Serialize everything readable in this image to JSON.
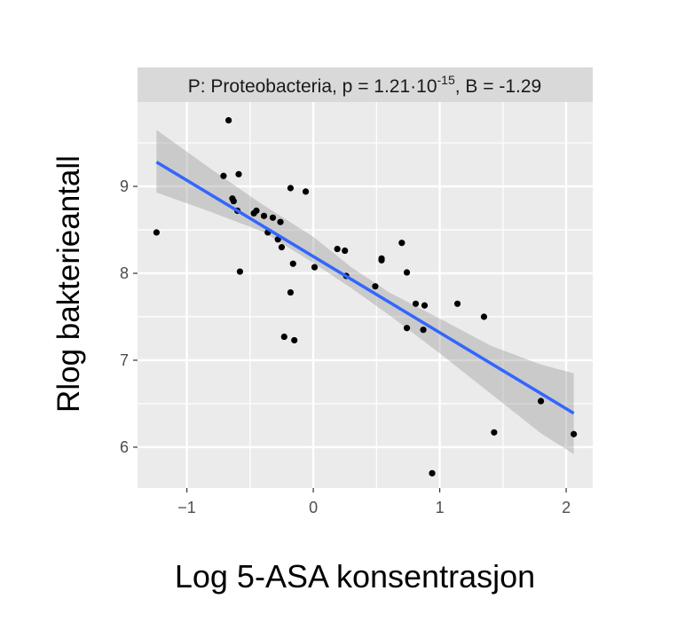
{
  "chart_data": {
    "type": "scatter",
    "facet_title": {
      "prefix": "P: Proteobacteria, p = 1.21·10",
      "exponent": "-15",
      "suffix": ", B = -1.29"
    },
    "xlabel": "Log 5-ASA konsentrasjon",
    "ylabel": "Rlog bakterieantall",
    "xlim": [
      -1.39,
      2.21
    ],
    "ylim": [
      5.53,
      9.97
    ],
    "xticks": [
      -1,
      0,
      1,
      2
    ],
    "xtick_labels": [
      "−1",
      "0",
      "1",
      "2"
    ],
    "yticks": [
      6,
      7,
      8,
      9
    ],
    "ytick_labels": [
      "6",
      "7",
      "8",
      "9"
    ],
    "grid": true,
    "colors": {
      "panel": "#ebebeb",
      "strip": "#d9d9d9",
      "grid": "#ffffff",
      "line": "#3366ff",
      "ribbon": "#999999",
      "points": "#000000"
    },
    "points": [
      [
        -1.24,
        8.47
      ],
      [
        -0.67,
        9.76
      ],
      [
        -0.71,
        9.12
      ],
      [
        -0.59,
        9.14
      ],
      [
        -0.64,
        8.86
      ],
      [
        -0.63,
        8.83
      ],
      [
        -0.6,
        8.72
      ],
      [
        -0.58,
        8.02
      ],
      [
        -0.47,
        8.69
      ],
      [
        -0.45,
        8.72
      ],
      [
        -0.39,
        8.66
      ],
      [
        -0.32,
        8.64
      ],
      [
        -0.26,
        8.59
      ],
      [
        -0.36,
        8.47
      ],
      [
        -0.28,
        8.39
      ],
      [
        -0.25,
        8.3
      ],
      [
        -0.16,
        8.11
      ],
      [
        -0.18,
        7.78
      ],
      [
        -0.23,
        7.27
      ],
      [
        -0.15,
        7.23
      ],
      [
        -0.18,
        8.98
      ],
      [
        -0.06,
        8.94
      ],
      [
        0.01,
        8.07
      ],
      [
        0.19,
        8.28
      ],
      [
        0.25,
        8.26
      ],
      [
        0.26,
        7.97
      ],
      [
        0.49,
        7.85
      ],
      [
        0.54,
        8.17
      ],
      [
        0.54,
        8.15
      ],
      [
        0.7,
        8.35
      ],
      [
        0.74,
        8.01
      ],
      [
        0.74,
        7.37
      ],
      [
        0.81,
        7.65
      ],
      [
        0.88,
        7.63
      ],
      [
        0.87,
        7.35
      ],
      [
        0.94,
        5.7
      ],
      [
        1.14,
        7.65
      ],
      [
        1.35,
        7.5
      ],
      [
        1.43,
        6.17
      ],
      [
        1.8,
        6.53
      ],
      [
        2.06,
        6.15
      ]
    ],
    "fit": {
      "x": [
        -1.24,
        2.06
      ],
      "y": [
        9.28,
        6.39
      ]
    },
    "ci": {
      "x": [
        -1.24,
        -0.8,
        -0.4,
        0.0,
        0.3,
        0.6,
        1.0,
        1.4,
        1.8,
        2.06
      ],
      "lower": [
        8.93,
        8.7,
        8.48,
        8.12,
        7.83,
        7.52,
        7.08,
        6.62,
        6.16,
        5.92
      ],
      "upper": [
        9.65,
        9.19,
        8.79,
        8.42,
        8.07,
        7.78,
        7.48,
        7.17,
        6.95,
        6.85
      ]
    }
  }
}
